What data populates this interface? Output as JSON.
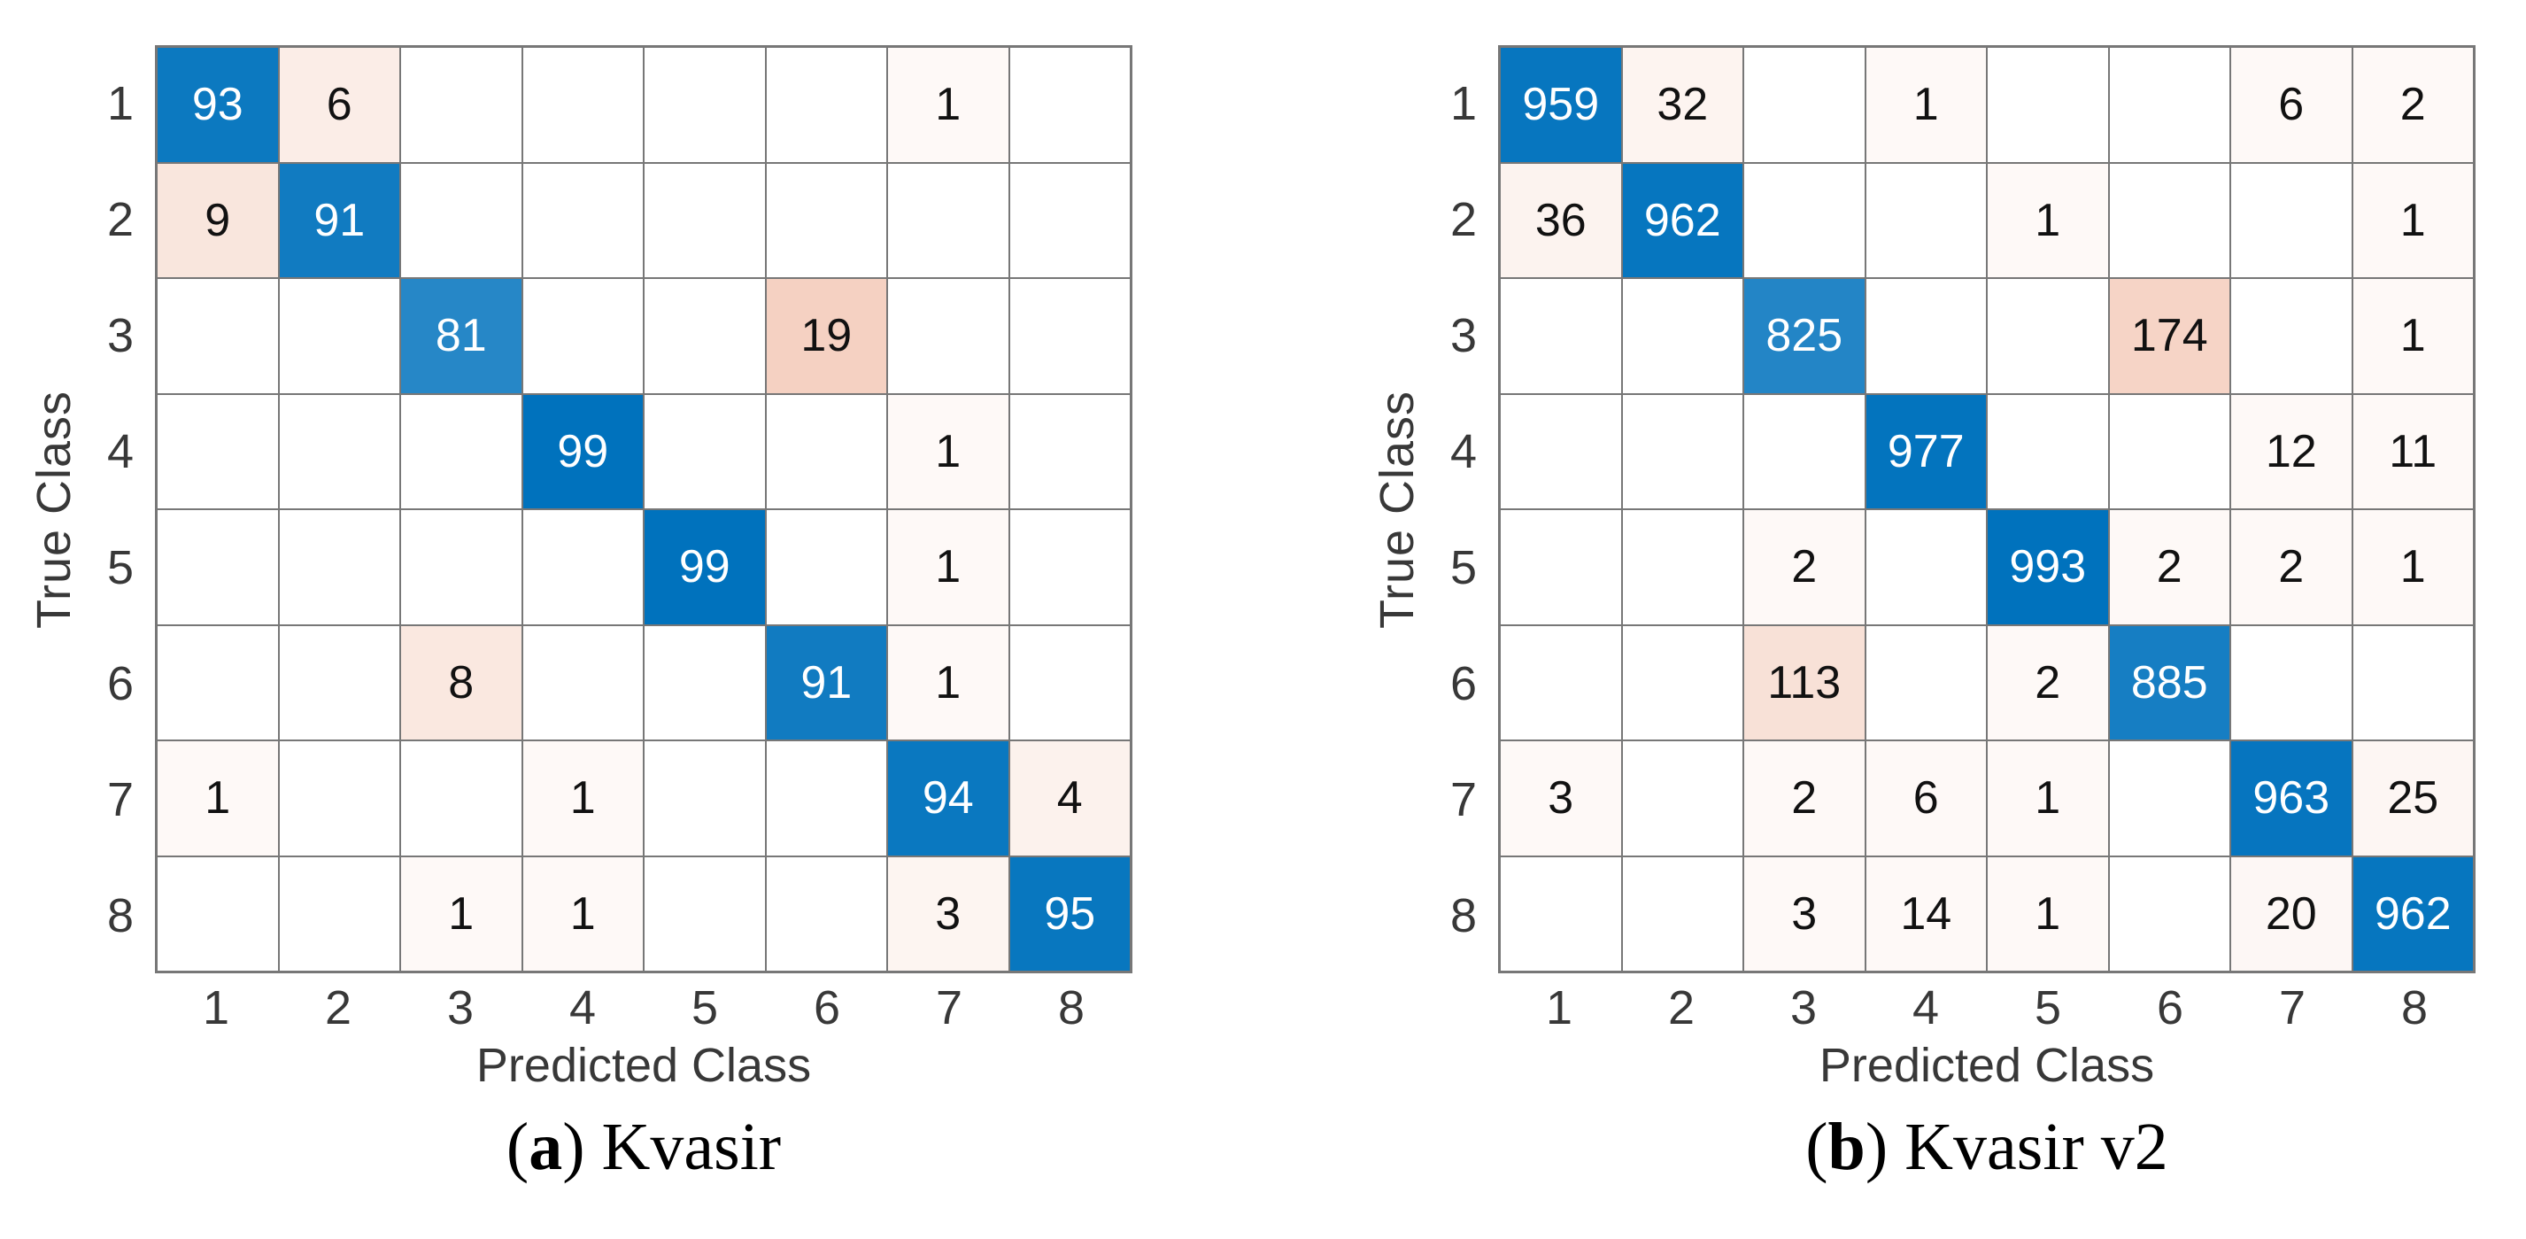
{
  "style": {
    "diagonal_color": "#0072BD",
    "off_diagonal_color": "#D95319",
    "grid_color": "#777777",
    "tick_color": "#383838",
    "cell_text_light": "#FFFFFF",
    "cell_text_dark": "#111111",
    "background": "#FFFFFF"
  },
  "chart_data": [
    {
      "type": "heatmap",
      "title": "(a) Kvasir",
      "xlabel": "Predicted Class",
      "ylabel": "True Class",
      "x_tick_labels": [
        "1",
        "2",
        "3",
        "4",
        "5",
        "6",
        "7",
        "8"
      ],
      "y_tick_labels": [
        "1",
        "2",
        "3",
        "4",
        "5",
        "6",
        "7",
        "8"
      ],
      "matrix": [
        [
          93,
          6,
          null,
          null,
          null,
          null,
          1,
          null
        ],
        [
          9,
          91,
          null,
          null,
          null,
          null,
          null,
          null
        ],
        [
          null,
          null,
          81,
          null,
          null,
          19,
          null,
          null
        ],
        [
          null,
          null,
          null,
          99,
          null,
          null,
          1,
          null
        ],
        [
          null,
          null,
          null,
          null,
          99,
          null,
          1,
          null
        ],
        [
          null,
          null,
          8,
          null,
          null,
          91,
          1,
          null
        ],
        [
          1,
          null,
          null,
          1,
          null,
          null,
          94,
          4
        ],
        [
          null,
          null,
          1,
          1,
          null,
          null,
          3,
          95
        ]
      ],
      "max_value": 99,
      "caption": {
        "open": "(",
        "letter": "a",
        "rest": ") Kvasir"
      }
    },
    {
      "type": "heatmap",
      "title": "(b) Kvasir v2",
      "xlabel": "Predicted Class",
      "ylabel": "True Class",
      "x_tick_labels": [
        "1",
        "2",
        "3",
        "4",
        "5",
        "6",
        "7",
        "8"
      ],
      "y_tick_labels": [
        "1",
        "2",
        "3",
        "4",
        "5",
        "6",
        "7",
        "8"
      ],
      "matrix": [
        [
          959,
          32,
          null,
          1,
          null,
          null,
          6,
          2
        ],
        [
          36,
          962,
          null,
          null,
          1,
          null,
          null,
          1
        ],
        [
          null,
          null,
          825,
          null,
          null,
          174,
          null,
          1
        ],
        [
          null,
          null,
          null,
          977,
          null,
          null,
          12,
          11
        ],
        [
          null,
          null,
          2,
          null,
          993,
          2,
          2,
          1
        ],
        [
          null,
          null,
          113,
          null,
          2,
          885,
          null,
          null
        ],
        [
          3,
          null,
          2,
          6,
          1,
          null,
          963,
          25
        ],
        [
          null,
          null,
          3,
          14,
          1,
          null,
          20,
          962
        ]
      ],
      "max_value": 993,
      "caption": {
        "open": "(",
        "letter": "b",
        "rest": ") Kvasir v2"
      }
    }
  ]
}
